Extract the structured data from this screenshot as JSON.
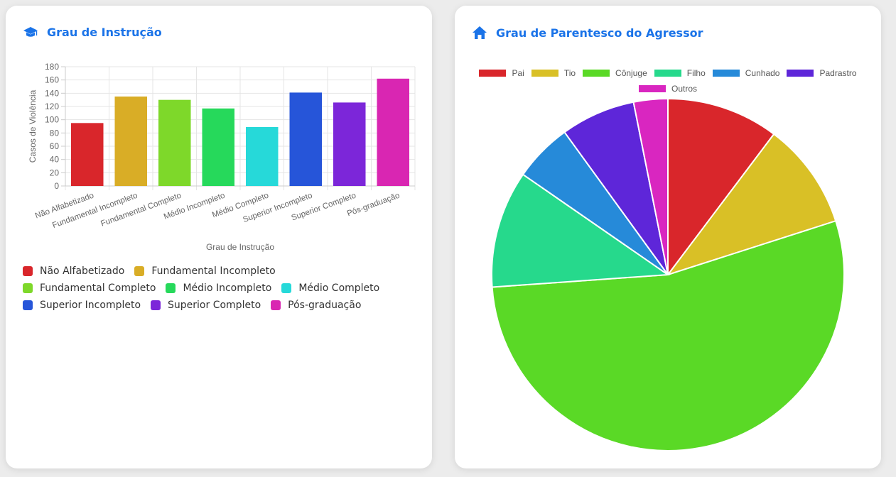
{
  "accent": "#1a73e8",
  "left_card": {
    "title": "Grau de Instrução",
    "icon": "graduation-cap-icon",
    "chart_data": {
      "type": "bar",
      "categories": [
        "Não Alfabetizado",
        "Fundamental Incompleto",
        "Fundamental Completo",
        "Médio Incompleto",
        "Médio Completo",
        "Superior Incompleto",
        "Superior Completo",
        "Pós-graduação"
      ],
      "values": [
        95,
        135,
        130,
        117,
        89,
        141,
        126,
        162
      ],
      "colors": [
        "#d9262b",
        "#d9ad26",
        "#7ed82a",
        "#26d95b",
        "#26d9d9",
        "#2655d9",
        "#7c26d9",
        "#d926b2"
      ],
      "ylabel": "Casos de Violência",
      "xlabel": "Grau de Instrução",
      "ylim": [
        0,
        180
      ],
      "yticks": [
        0,
        20,
        40,
        60,
        80,
        100,
        120,
        140,
        160,
        180
      ],
      "grid": true,
      "legend_position": "bottom"
    }
  },
  "right_card": {
    "title": "Grau de Parentesco do Agressor",
    "icon": "home-icon",
    "chart_data": {
      "type": "pie",
      "labels": [
        "Pai",
        "Tio",
        "Cônjuge",
        "Filho",
        "Cunhado",
        "Padrastro",
        "Outros"
      ],
      "values": [
        10.5,
        10,
        55,
        11,
        5.5,
        7,
        3.2
      ],
      "colors": [
        "#d9262b",
        "#d9c026",
        "#5ad926",
        "#26d98c",
        "#268ad9",
        "#5e26d9",
        "#d926c0"
      ],
      "legend_position": "top"
    }
  }
}
